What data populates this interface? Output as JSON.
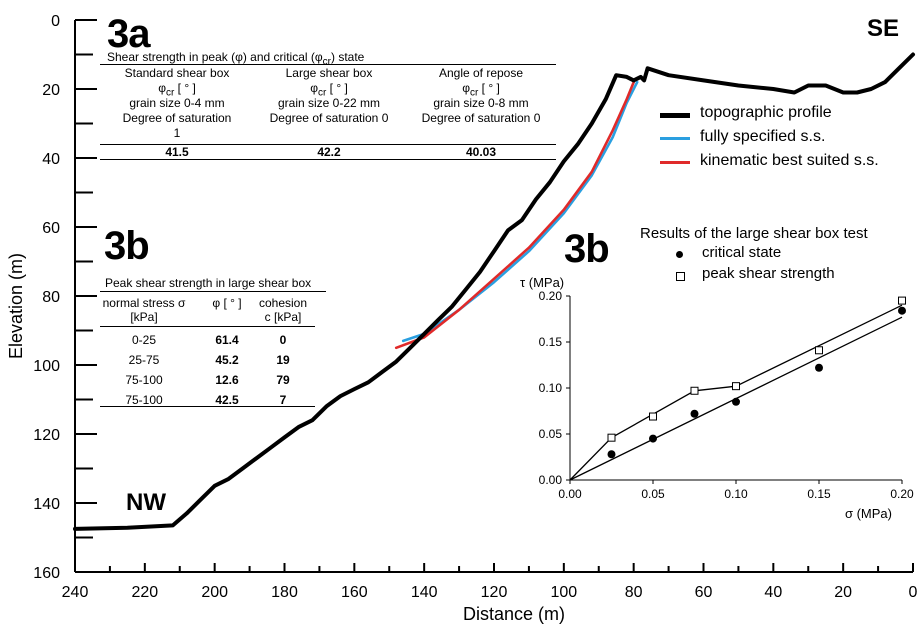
{
  "labels": {
    "panel_3a": "3a",
    "panel_3b_left": "3b",
    "panel_3b_right": "3b",
    "corner_se": "SE",
    "corner_nw": "NW"
  },
  "table_3a": {
    "caption_html": "Shear strength in peak (φ) and critical (φ<sub>cr</sub>) state",
    "columns": [
      {
        "lines": [
          "Standard shear box",
          "φ<sub>cr</sub> [ ° ]",
          "grain size 0-4 mm",
          "Degree of saturation",
          "1"
        ],
        "value": "41.5"
      },
      {
        "lines": [
          "Large shear box",
          "φ<sub>cr</sub> [ ° ]",
          "grain size 0-22 mm",
          "Degree of saturation 0"
        ],
        "value": "42.2"
      },
      {
        "lines": [
          "Angle of repose",
          "φ<sub>cr</sub> [ ° ]",
          "grain size 0-8 mm",
          "Degree of saturation 0"
        ],
        "value": "40.03"
      }
    ]
  },
  "table_3b": {
    "caption": "Peak shear strength in large shear box",
    "headers": [
      [
        "normal stress σ",
        "[kPa]"
      ],
      [
        "φ [ ° ]"
      ],
      [
        "cohesion",
        "c [kPa]"
      ]
    ],
    "rows": [
      [
        "0-25",
        "61.4",
        "0"
      ],
      [
        "25-75",
        "45.2",
        "19"
      ],
      [
        "75-100",
        "12.6",
        "79"
      ],
      [
        "75-100",
        "42.5",
        "7"
      ]
    ]
  },
  "legend": {
    "items": [
      {
        "label": "topographic profile",
        "color": "#000000"
      },
      {
        "label": "fully specified s.s.",
        "color": "#2a9fe0"
      },
      {
        "label": "kinematic best suited s.s.",
        "color": "#e02a2a"
      }
    ]
  },
  "inset_header": {
    "title": "Results of the large shear box test",
    "items": [
      {
        "label": "critical state",
        "marker": "filled-circle"
      },
      {
        "label": "peak shear strength",
        "marker": "open-square"
      }
    ]
  },
  "chart_data": [
    {
      "type": "line",
      "xlabel": "Distance (m)",
      "ylabel": "Elevation (m)",
      "xlim": [
        240,
        0
      ],
      "ylim": [
        160,
        0
      ],
      "x_ticks": [
        240,
        220,
        200,
        180,
        160,
        140,
        120,
        100,
        80,
        60,
        40,
        20,
        0
      ],
      "y_ticks": [
        0,
        20,
        40,
        60,
        80,
        100,
        120,
        140,
        160
      ],
      "series": [
        {
          "name": "topographic profile",
          "color": "#000000",
          "points": [
            [
              240,
              147.5
            ],
            [
              225,
              147.2
            ],
            [
              212,
              146.5
            ],
            [
              208,
              143
            ],
            [
              204,
              139
            ],
            [
              200,
              135
            ],
            [
              196,
              133
            ],
            [
              192,
              130
            ],
            [
              188,
              127
            ],
            [
              184,
              124
            ],
            [
              180,
              121
            ],
            [
              176,
              118
            ],
            [
              172,
              116
            ],
            [
              168,
              112
            ],
            [
              164,
              109
            ],
            [
              160,
              107
            ],
            [
              156,
              105
            ],
            [
              152,
              102
            ],
            [
              148,
              99
            ],
            [
              144,
              95
            ],
            [
              140,
              91
            ],
            [
              136,
              87
            ],
            [
              132,
              83
            ],
            [
              128,
              78
            ],
            [
              124,
              73
            ],
            [
              120,
              67
            ],
            [
              116,
              61
            ],
            [
              112,
              58
            ],
            [
              108,
              52
            ],
            [
              104,
              47
            ],
            [
              100,
              41
            ],
            [
              96,
              36
            ],
            [
              92,
              30
            ],
            [
              88,
              23
            ],
            [
              85,
              16
            ],
            [
              82,
              16.5
            ],
            [
              80,
              17.5
            ],
            [
              78,
              16.5
            ],
            [
              77,
              17.5
            ],
            [
              76,
              14
            ],
            [
              70,
              16
            ],
            [
              60,
              17.5
            ],
            [
              50,
              19
            ],
            [
              40,
              20
            ],
            [
              34,
              21
            ],
            [
              30,
              19
            ],
            [
              25,
              19
            ],
            [
              20,
              21
            ],
            [
              16,
              21
            ],
            [
              12,
              20
            ],
            [
              8,
              18
            ],
            [
              4,
              14
            ],
            [
              0,
              10
            ]
          ]
        },
        {
          "name": "fully specified s.s.",
          "color": "#2a9fe0",
          "points": [
            [
              146,
              93
            ],
            [
              140,
              91
            ],
            [
              130,
              84
            ],
            [
              120,
              76
            ],
            [
              110,
              67
            ],
            [
              100,
              56
            ],
            [
              92,
              45
            ],
            [
              86,
              34
            ],
            [
              82,
              24
            ],
            [
              79,
              18
            ]
          ]
        },
        {
          "name": "kinematic best suited s.s.",
          "color": "#e02a2a",
          "points": [
            [
              148,
              95
            ],
            [
              140,
              92
            ],
            [
              130,
              84
            ],
            [
              120,
              75
            ],
            [
              110,
              66
            ],
            [
              100,
              55
            ],
            [
              92,
              44
            ],
            [
              86,
              32
            ],
            [
              82,
              23
            ],
            [
              80,
              18
            ]
          ]
        }
      ]
    },
    {
      "type": "scatter",
      "xlabel": "σ (MPa)",
      "ylabel": "τ (MPa)",
      "xlim": [
        0,
        0.2
      ],
      "ylim": [
        0,
        0.2
      ],
      "x_ticks": [
        "0.00",
        "0.05",
        "0.10",
        "0.15",
        "0.20"
      ],
      "y_ticks": [
        "0.00",
        "0.05",
        "0.10",
        "0.15",
        "0.20"
      ],
      "series": [
        {
          "name": "critical state",
          "marker": "filled-circle",
          "points": [
            [
              0.025,
              0.028
            ],
            [
              0.05,
              0.045
            ],
            [
              0.075,
              0.072
            ],
            [
              0.1,
              0.085
            ],
            [
              0.15,
              0.122
            ],
            [
              0.2,
              0.184
            ]
          ],
          "line": [
            [
              0,
              0
            ],
            [
              0.2,
              0.177
            ]
          ]
        },
        {
          "name": "peak shear strength",
          "marker": "open-square",
          "points": [
            [
              0.025,
              0.046
            ],
            [
              0.05,
              0.069
            ],
            [
              0.075,
              0.097
            ],
            [
              0.1,
              0.102
            ],
            [
              0.15,
              0.141
            ],
            [
              0.2,
              0.195
            ]
          ],
          "line": [
            [
              0,
              0
            ],
            [
              0.025,
              0.046
            ],
            [
              0.075,
              0.097
            ],
            [
              0.1,
              0.102
            ],
            [
              0.2,
              0.19
            ]
          ]
        }
      ]
    }
  ]
}
